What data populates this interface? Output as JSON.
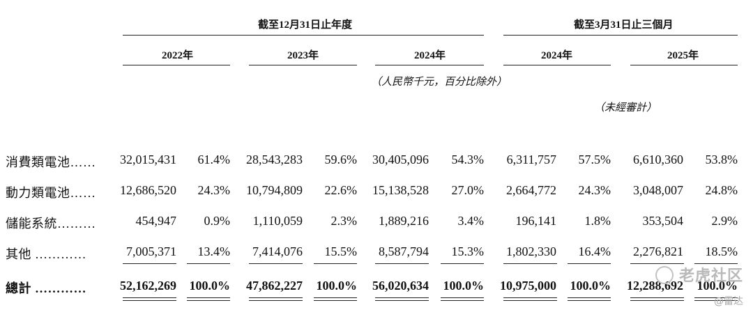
{
  "header": {
    "group1": "截至12月31日止年度",
    "group2": "截至3月31日止三個月",
    "years": [
      "2022年",
      "2023年",
      "2024年",
      "2024年",
      "2025年"
    ],
    "unit_note": "（人民幣千元，百分比除外）",
    "audit_note": "（未經審計）"
  },
  "rows": [
    {
      "label": "消費類電池……",
      "values": [
        "32,015,431",
        "61.4%",
        "28,543,283",
        "59.6%",
        "30,405,096",
        "54.3%",
        "6,311,757",
        "57.5%",
        "6,610,360",
        "53.8%"
      ]
    },
    {
      "label": "動力類電池……",
      "values": [
        "12,686,520",
        "24.3%",
        "10,794,809",
        "22.6%",
        "15,138,528",
        "27.0%",
        "2,664,772",
        "24.3%",
        "3,048,007",
        "24.8%"
      ]
    },
    {
      "label": "儲能系統………",
      "values": [
        "454,947",
        "0.9%",
        "1,110,059",
        "2.3%",
        "1,889,216",
        "3.4%",
        "196,141",
        "1.8%",
        "353,504",
        "2.9%"
      ]
    },
    {
      "label": "其他 …………",
      "values": [
        "7,005,371",
        "13.4%",
        "7,414,076",
        "15.5%",
        "8,587,794",
        "15.3%",
        "1,802,330",
        "16.4%",
        "2,276,821",
        "18.5%"
      ]
    }
  ],
  "total": {
    "label": "總計 …………",
    "values": [
      "52,162,269",
      "100.0%",
      "47,862,227",
      "100.0%",
      "56,020,634",
      "100.0%",
      "10,975,000",
      "100.0%",
      "12,288,692",
      "100.0%"
    ]
  },
  "watermark": {
    "brand": "老虎社区",
    "handle": "@雷达"
  }
}
